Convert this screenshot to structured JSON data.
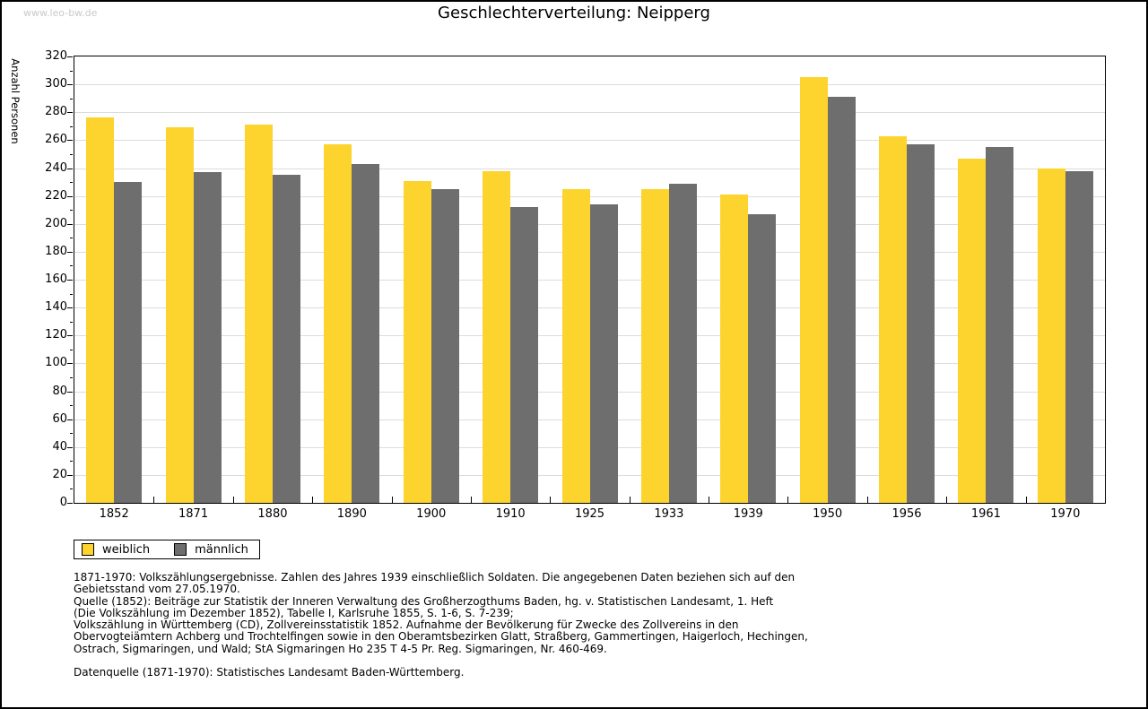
{
  "page": {
    "watermark": "www.leo-bw.de",
    "title": "Geschlechterverteilung: Neipperg"
  },
  "chart_data": {
    "type": "bar",
    "title": "Geschlechterverteilung: Neipperg",
    "xlabel": "",
    "ylabel": "Anzahl Personen",
    "ylim": [
      0,
      320
    ],
    "ytick_step": 20,
    "ytick_minor_step": 10,
    "grid": true,
    "legend_position": "bottom-left",
    "categories": [
      "1852",
      "1871",
      "1880",
      "1890",
      "1900",
      "1910",
      "1925",
      "1933",
      "1939",
      "1950",
      "1956",
      "1961",
      "1970"
    ],
    "series": [
      {
        "name": "weiblich",
        "color": "#fcd42d",
        "values": [
          276,
          269,
          271,
          257,
          231,
          238,
          225,
          225,
          221,
          305,
          263,
          247,
          240
        ]
      },
      {
        "name": "männlich",
        "color": "#6e6e6e",
        "values": [
          230,
          237,
          235,
          243,
          225,
          212,
          214,
          229,
          207,
          291,
          257,
          255,
          238
        ]
      }
    ]
  },
  "footer": {
    "lines": [
      "1871-1970: Volkszählungsergebnisse. Zahlen des Jahres 1939 einschließlich Soldaten. Die angegebenen Daten beziehen sich auf den",
      "Gebietsstand vom 27.05.1970.",
      "Quelle (1852): Beiträge zur Statistik der Inneren Verwaltung des Großherzogthums Baden, hg. v. Statistischen Landesamt, 1. Heft",
      "(Die Volkszählung im Dezember 1852), Tabelle I, Karlsruhe 1855, S. 1-6, S. 7-239;",
      "Volkszählung in Württemberg (CD), Zollvereinsstatistik 1852. Aufnahme der Bevölkerung für Zwecke des Zollvereins in den",
      "Obervogteiämtern Achberg und Trochtelfingen sowie in den Oberamtsbezirken Glatt, Straßberg, Gammertingen, Haigerloch, Hechingen,",
      "Ostrach, Sigmaringen, und Wald; StA Sigmaringen Ho 235 T 4-5 Pr. Reg. Sigmaringen, Nr. 460-469.",
      "",
      "Datenquelle (1871-1970): Statistisches Landesamt Baden-Württemberg."
    ]
  }
}
